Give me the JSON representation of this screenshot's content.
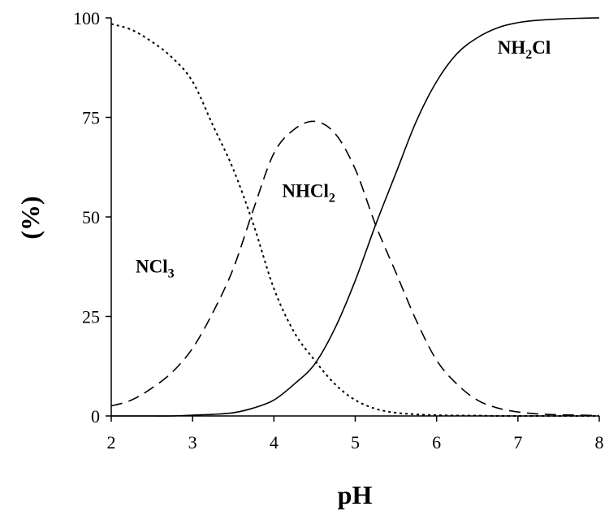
{
  "chart_data": {
    "type": "line",
    "xlabel": "pH",
    "ylabel": "(%)",
    "xlim": [
      2,
      8
    ],
    "ylim": [
      0,
      100
    ],
    "xticks": [
      "2",
      "3",
      "4",
      "5",
      "6",
      "7",
      "8"
    ],
    "yticks": [
      "0",
      "25",
      "50",
      "75",
      "100"
    ],
    "grid": false,
    "legend": "none",
    "x": [
      2.0,
      2.25,
      2.5,
      2.75,
      3.0,
      3.25,
      3.5,
      3.75,
      4.0,
      4.25,
      4.5,
      4.75,
      5.0,
      5.25,
      5.5,
      5.75,
      6.0,
      6.25,
      6.5,
      6.75,
      7.0,
      7.25,
      7.5,
      7.75,
      8.0
    ],
    "series": [
      {
        "name": "NCl3",
        "style": "dotted",
        "values": [
          98.5,
          97,
          94,
          90,
          84,
          73,
          62,
          48,
          32,
          21,
          14,
          8,
          4,
          1.8,
          0.8,
          0.4,
          0.2,
          0.1,
          0.1,
          0,
          0,
          0,
          0,
          0,
          0
        ]
      },
      {
        "name": "NHCl2",
        "style": "dashed",
        "values": [
          2.5,
          4,
          7,
          11,
          17,
          26,
          37,
          52,
          66,
          72,
          74,
          71,
          62,
          48,
          36,
          24,
          14,
          8,
          4,
          2,
          1,
          0.5,
          0.3,
          0.2,
          0.1
        ]
      },
      {
        "name": "NH2Cl",
        "style": "solid",
        "values": [
          0,
          0,
          0,
          0,
          0.2,
          0.4,
          0.8,
          2,
          4,
          8,
          13,
          22,
          34,
          48,
          61,
          74,
          84,
          91,
          95,
          97.5,
          98.8,
          99.4,
          99.7,
          99.9,
          100
        ]
      }
    ],
    "annotations": [
      {
        "base": "NCl",
        "sub": "3",
        "after": "",
        "x": 2.3,
        "y": 36
      },
      {
        "base": "NHCl",
        "sub": "2",
        "after": "",
        "x": 4.1,
        "y": 55
      },
      {
        "base": "NH",
        "sub": "2",
        "after": "Cl",
        "x": 6.75,
        "y": 91
      }
    ]
  }
}
